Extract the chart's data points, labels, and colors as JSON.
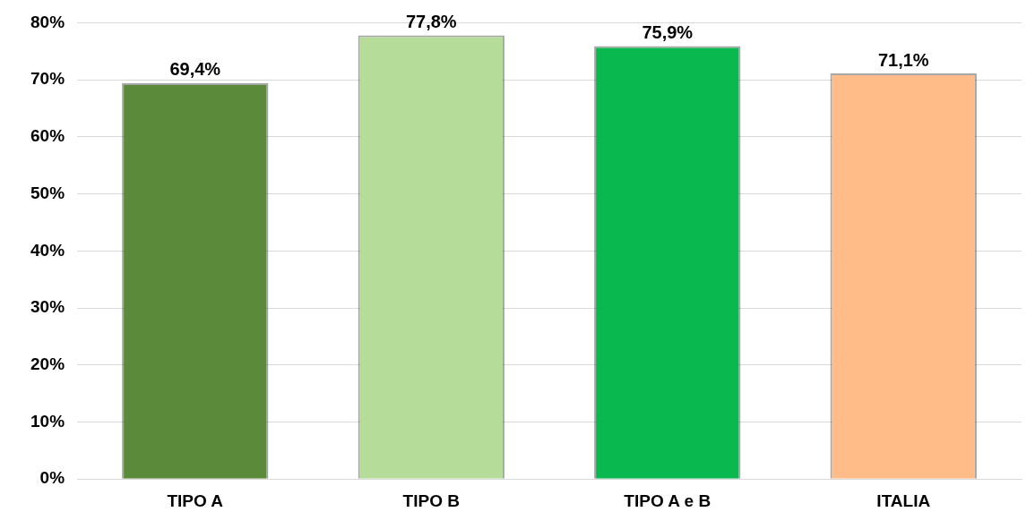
{
  "chart_data": {
    "type": "bar",
    "categories": [
      "TIPO A",
      "TIPO B",
      "TIPO A e B",
      "ITALIA"
    ],
    "values": [
      69.4,
      77.8,
      75.9,
      71.1
    ],
    "colors": [
      "#5b8a3a",
      "#b5dc98",
      "#0ab850",
      "#ffbb88"
    ],
    "value_labels": [
      "69,4%",
      "77,8%",
      "75,9%",
      "71,1%"
    ],
    "ylim": [
      0,
      80
    ],
    "yticks": [
      {
        "value": 0,
        "label": "0%"
      },
      {
        "value": 10,
        "label": "10%"
      },
      {
        "value": 20,
        "label": "20%"
      },
      {
        "value": 30,
        "label": "30%"
      },
      {
        "value": 40,
        "label": "40%"
      },
      {
        "value": 50,
        "label": "50%"
      },
      {
        "value": 60,
        "label": "60%"
      },
      {
        "value": 70,
        "label": "70%"
      },
      {
        "value": 80,
        "label": "80%"
      }
    ],
    "grid": "y",
    "legend": false
  }
}
